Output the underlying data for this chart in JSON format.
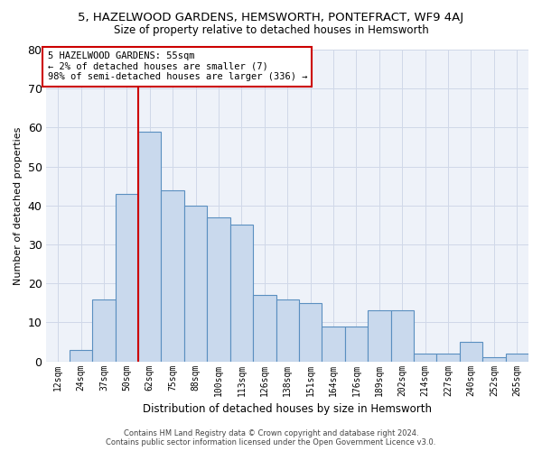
{
  "title": "5, HAZELWOOD GARDENS, HEMSWORTH, PONTEFRACT, WF9 4AJ",
  "subtitle": "Size of property relative to detached houses in Hemsworth",
  "xlabel": "Distribution of detached houses by size in Hemsworth",
  "ylabel": "Number of detached properties",
  "bar_labels": [
    "12sqm",
    "24sqm",
    "37sqm",
    "50sqm",
    "62sqm",
    "75sqm",
    "88sqm",
    "100sqm",
    "113sqm",
    "126sqm",
    "138sqm",
    "151sqm",
    "164sqm",
    "176sqm",
    "189sqm",
    "202sqm",
    "214sqm",
    "227sqm",
    "240sqm",
    "252sqm",
    "265sqm"
  ],
  "bar_values": [
    0,
    3,
    16,
    43,
    59,
    44,
    40,
    37,
    35,
    17,
    16,
    15,
    9,
    9,
    13,
    13,
    2,
    2,
    5,
    1,
    2
  ],
  "bar_color": "#c9d9ed",
  "bar_edge_color": "#5a8fc0",
  "grid_color": "#d0d8e8",
  "background_color": "#eef2f9",
  "property_line_color": "#cc0000",
  "annotation_text": "5 HAZELWOOD GARDENS: 55sqm\n← 2% of detached houses are smaller (7)\n98% of semi-detached houses are larger (336) →",
  "annotation_box_color": "#cc0000",
  "footer_line1": "Contains HM Land Registry data © Crown copyright and database right 2024.",
  "footer_line2": "Contains public sector information licensed under the Open Government Licence v3.0.",
  "ylim": [
    0,
    80
  ],
  "yticks": [
    0,
    10,
    20,
    30,
    40,
    50,
    60,
    70,
    80
  ]
}
